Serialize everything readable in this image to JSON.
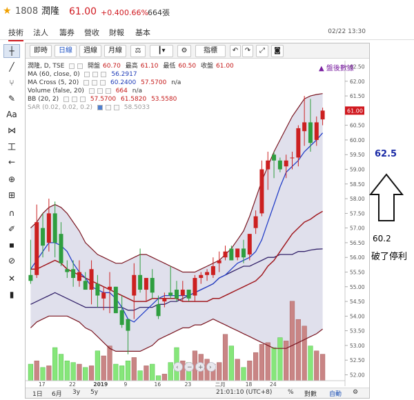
{
  "header": {
    "code": "1808",
    "name": "潤隆",
    "price": "61.00",
    "change": "+0.40",
    "change_pct": "0.66%",
    "volume": "664張"
  },
  "tabs": [
    "技術",
    "法人",
    "籌券",
    "營收",
    "財報",
    "基本"
  ],
  "active_tab": "技術",
  "datetime": "02/22 13:30",
  "toolbar": {
    "periods": [
      "即時",
      "日線",
      "週線",
      "月線"
    ],
    "active_period": "日線",
    "indicator_label": "指標"
  },
  "legend": {
    "main": {
      "title": "潤隆, D, TSE",
      "open_label": "開盤",
      "open": "60.70",
      "high_label": "最高",
      "high": "61.10",
      "low_label": "最低",
      "low": "60.50",
      "close_label": "收盤",
      "close": "61.00"
    },
    "ma": {
      "label": "MA (60, close, 0)",
      "value": "56.2917"
    },
    "ma_cross": {
      "label": "MA Cross (5, 20)",
      "v1": "60.2400",
      "v2": "57.5700",
      "v3": "n/a"
    },
    "volume": {
      "label": "Volume (false, 20)",
      "value": "664",
      "v2": "n/a"
    },
    "bb": {
      "label": "BB (20, 2)",
      "v1": "57.5700",
      "v2": "61.5820",
      "v3": "53.5580"
    },
    "sar": {
      "label": "SAR (0.02, 0.02, 0.2)",
      "value": "58.5033"
    },
    "after_hours": "盤後數據"
  },
  "price_tag": "61.00",
  "bottom": {
    "ranges": [
      "1日",
      "6月",
      "3y",
      "5y"
    ],
    "time": "21:01:10 (UTC+8)",
    "percent": "%",
    "log": "對數",
    "auto": "自動"
  },
  "annotation": {
    "target_price": "62.5",
    "stop_price": "60.2",
    "stop_text": "破了停利"
  },
  "colors": {
    "up": "#cc2020",
    "down": "#2f9e3f",
    "vol_up": "#c98585",
    "vol_down": "#86e67a",
    "bb_band": "#7a1520",
    "bb_fill": "#d6d6e6",
    "ma60": "#33226a",
    "ma5": "#2540c8",
    "ma20": "#a0181e",
    "arrow": "#1a2aa6"
  },
  "chart_data": {
    "type": "candlestick",
    "y_axis_ticks": [
      "62.50",
      "62.00",
      "61.50",
      "61.00",
      "60.50",
      "60.00",
      "59.50",
      "59.00",
      "58.50",
      "58.00",
      "57.50",
      "57.00",
      "56.50",
      "56.00",
      "55.50",
      "55.00",
      "54.50",
      "54.00",
      "53.50",
      "53.00",
      "52.50",
      "52.00"
    ],
    "x_axis_ticks": [
      "17",
      "22",
      "2019",
      "9",
      "16",
      "23",
      "二月",
      "18",
      "24"
    ],
    "ylim": [
      51.8,
      62.7
    ],
    "candles": [
      {
        "o": 55.4,
        "h": 56.6,
        "l": 55.1,
        "c": 55.2
      },
      {
        "o": 55.4,
        "h": 57.8,
        "l": 55.3,
        "c": 57.2
      },
      {
        "o": 57.0,
        "h": 57.5,
        "l": 56.0,
        "c": 56.4
      },
      {
        "o": 56.5,
        "h": 58.0,
        "l": 56.2,
        "c": 57.5
      },
      {
        "o": 57.5,
        "h": 57.9,
        "l": 56.0,
        "c": 56.5
      },
      {
        "o": 56.8,
        "h": 57.2,
        "l": 55.7,
        "c": 55.8
      },
      {
        "o": 55.6,
        "h": 55.9,
        "l": 55.3,
        "c": 55.5
      },
      {
        "o": 55.6,
        "h": 55.9,
        "l": 55.0,
        "c": 55.3
      },
      {
        "o": 55.2,
        "h": 55.9,
        "l": 55.0,
        "c": 55.5
      },
      {
        "o": 55.2,
        "h": 55.5,
        "l": 54.9,
        "c": 54.9
      },
      {
        "o": 54.9,
        "h": 55.9,
        "l": 54.4,
        "c": 55.6
      },
      {
        "o": 55.1,
        "h": 55.4,
        "l": 54.3,
        "c": 54.7
      },
      {
        "o": 54.6,
        "h": 55.0,
        "l": 54.2,
        "c": 54.8
      },
      {
        "o": 54.9,
        "h": 55.5,
        "l": 54.1,
        "c": 55.0
      },
      {
        "o": 55.0,
        "h": 55.0,
        "l": 54.1,
        "c": 54.1
      },
      {
        "o": 54.2,
        "h": 54.7,
        "l": 53.6,
        "c": 53.7
      },
      {
        "o": 53.9,
        "h": 53.9,
        "l": 52.7,
        "c": 53.5
      },
      {
        "o": 54.7,
        "h": 55.8,
        "l": 53.9,
        "c": 55.4
      },
      {
        "o": 55.4,
        "h": 56.3,
        "l": 54.8,
        "c": 54.9
      },
      {
        "o": 54.9,
        "h": 55.3,
        "l": 54.5,
        "c": 55.3
      },
      {
        "o": 55.3,
        "h": 55.6,
        "l": 54.6,
        "c": 54.8
      },
      {
        "o": 54.4,
        "h": 54.7,
        "l": 53.9,
        "c": 54.0
      },
      {
        "o": 54.5,
        "h": 54.8,
        "l": 54.3,
        "c": 54.6
      },
      {
        "o": 54.8,
        "h": 55.7,
        "l": 54.6,
        "c": 54.7
      },
      {
        "o": 54.9,
        "h": 55.2,
        "l": 54.5,
        "c": 54.6
      },
      {
        "o": 54.7,
        "h": 55.2,
        "l": 54.5,
        "c": 54.9
      },
      {
        "o": 54.9,
        "h": 54.9,
        "l": 54.5,
        "c": 54.6
      },
      {
        "o": 54.7,
        "h": 55.4,
        "l": 54.5,
        "c": 55.3
      },
      {
        "o": 55.3,
        "h": 55.5,
        "l": 55.1,
        "c": 55.4
      },
      {
        "o": 55.4,
        "h": 55.6,
        "l": 55.2,
        "c": 55.5
      },
      {
        "o": 55.4,
        "h": 56.0,
        "l": 55.3,
        "c": 55.7
      },
      {
        "o": 55.8,
        "h": 56.2,
        "l": 55.5,
        "c": 55.9
      },
      {
        "o": 56.0,
        "h": 56.4,
        "l": 55.9,
        "c": 56.2
      },
      {
        "o": 56.3,
        "h": 56.4,
        "l": 55.9,
        "c": 55.9
      },
      {
        "o": 56.0,
        "h": 56.3,
        "l": 55.9,
        "c": 56.3
      },
      {
        "o": 56.3,
        "h": 56.6,
        "l": 55.8,
        "c": 56.0
      },
      {
        "o": 56.1,
        "h": 56.8,
        "l": 55.9,
        "c": 56.8
      },
      {
        "o": 57.0,
        "h": 57.6,
        "l": 56.8,
        "c": 57.4
      },
      {
        "o": 57.5,
        "h": 59.3,
        "l": 57.4,
        "c": 59.0
      },
      {
        "o": 59.0,
        "h": 59.6,
        "l": 58.3,
        "c": 59.3
      },
      {
        "o": 59.5,
        "h": 59.6,
        "l": 58.7,
        "c": 59.3
      },
      {
        "o": 59.3,
        "h": 59.4,
        "l": 58.9,
        "c": 59.0
      },
      {
        "o": 59.1,
        "h": 59.5,
        "l": 58.7,
        "c": 59.3
      },
      {
        "o": 59.4,
        "h": 59.6,
        "l": 59.0,
        "c": 59.4
      },
      {
        "o": 59.4,
        "h": 60.5,
        "l": 59.1,
        "c": 60.4
      },
      {
        "o": 60.3,
        "h": 61.5,
        "l": 59.8,
        "c": 60.6
      },
      {
        "o": 60.6,
        "h": 61.4,
        "l": 59.6,
        "c": 59.9
      },
      {
        "o": 60.0,
        "h": 60.8,
        "l": 59.8,
        "c": 60.6
      },
      {
        "o": 60.7,
        "h": 61.1,
        "l": 60.5,
        "c": 61.0
      }
    ],
    "volumes": [
      1.0,
      1.2,
      0.8,
      0.9,
      2.0,
      1.6,
      1.2,
      1.1,
      1.0,
      0.8,
      0.9,
      1.8,
      1.5,
      2.1,
      1.0,
      0.9,
      1.2,
      1.4,
      0.6,
      0.9,
      1.0,
      0.3,
      0.4,
      1.1,
      2.0,
      1.2,
      1.1,
      1.8,
      1.6,
      1.3,
      1.0,
      1.1,
      2.8,
      2.1,
      1.3,
      0.8,
      1.2,
      1.7,
      2.2,
      2.3,
      2.0,
      2.6,
      2.4,
      4.8,
      3.7,
      3.3,
      2.1,
      1.8,
      1.6
    ],
    "ma60": [
      54.4,
      54.5,
      54.6,
      54.7,
      54.8,
      54.7,
      54.6,
      54.5,
      54.4,
      54.3,
      54.3,
      54.3,
      54.3,
      54.3,
      54.3,
      54.3,
      54.2,
      54.2,
      54.3,
      54.3,
      54.3,
      54.4,
      54.4,
      54.5,
      54.5,
      54.6,
      54.7,
      54.8,
      54.9,
      55.0,
      55.1,
      55.3,
      55.4,
      55.5,
      55.6,
      55.7,
      55.7,
      55.8,
      55.9,
      56.0,
      56.0,
      56.1,
      56.1,
      56.1,
      56.2,
      56.2,
      56.25,
      56.28,
      56.29
    ],
    "ma5": [
      55.6,
      55.9,
      56.2,
      56.5,
      56.5,
      56.4,
      56.2,
      55.8,
      55.5,
      55.3,
      55.0,
      54.9,
      54.8,
      54.8,
      54.6,
      54.3,
      53.9,
      53.8,
      54.0,
      54.2,
      54.4,
      54.6,
      54.7,
      54.7,
      54.7,
      54.7,
      54.7,
      54.8,
      54.9,
      55.0,
      55.1,
      55.3,
      55.4,
      55.6,
      55.8,
      55.9,
      56.0,
      56.2,
      56.6,
      57.2,
      57.8,
      58.4,
      58.9,
      59.1,
      59.3,
      59.6,
      59.8,
      60.0,
      60.24
    ],
    "ma20": [
      55.6,
      55.6,
      55.7,
      55.8,
      55.9,
      55.8,
      55.6,
      55.5,
      55.4,
      55.3,
      55.2,
      55.1,
      55.0,
      54.9,
      54.8,
      54.7,
      54.6,
      54.5,
      54.5,
      54.5,
      54.6,
      54.6,
      54.6,
      54.6,
      54.6,
      54.5,
      54.5,
      54.5,
      54.5,
      54.5,
      54.6,
      54.6,
      54.7,
      54.8,
      54.9,
      55.0,
      55.1,
      55.2,
      55.4,
      55.7,
      55.9,
      56.2,
      56.5,
      56.8,
      57.0,
      57.2,
      57.3,
      57.45,
      57.57
    ],
    "bb_upper": [
      57.0,
      57.2,
      57.5,
      57.7,
      57.8,
      57.7,
      57.5,
      57.2,
      56.9,
      56.5,
      56.3,
      56.1,
      56.0,
      55.9,
      55.8,
      55.8,
      55.9,
      56.0,
      56.1,
      56.1,
      56.0,
      55.9,
      55.8,
      55.7,
      55.6,
      55.5,
      55.5,
      55.5,
      55.6,
      55.7,
      55.8,
      55.9,
      56.1,
      56.3,
      56.6,
      56.9,
      57.4,
      58.0,
      58.6,
      59.1,
      59.6,
      60.0,
      60.4,
      60.8,
      61.1,
      61.4,
      61.5,
      61.55,
      61.58
    ],
    "bb_lower": [
      53.6,
      53.8,
      53.9,
      54.0,
      54.0,
      54.0,
      54.0,
      53.9,
      53.8,
      53.6,
      53.5,
      53.3,
      53.1,
      52.9,
      52.8,
      52.8,
      52.8,
      52.8,
      52.8,
      52.9,
      53.0,
      53.2,
      53.3,
      53.4,
      53.5,
      53.6,
      53.6,
      53.7,
      53.7,
      53.8,
      53.9,
      53.8,
      53.7,
      53.6,
      53.5,
      53.4,
      53.3,
      53.2,
      53.1,
      53.0,
      52.9,
      52.9,
      52.9,
      53.0,
      53.1,
      53.2,
      53.3,
      53.4,
      53.56
    ]
  }
}
